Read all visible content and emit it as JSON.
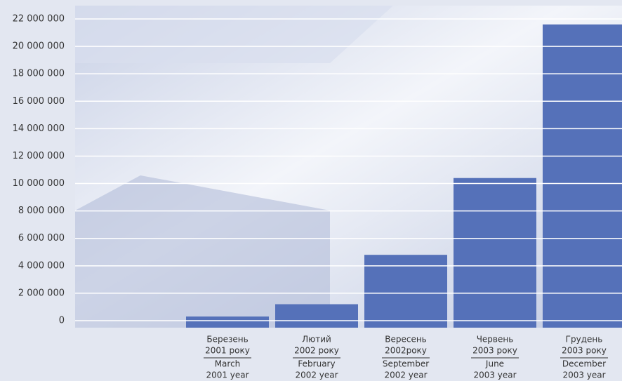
{
  "chart_data": {
    "type": "bar",
    "categories": [
      [
        "Березень",
        "2001 року",
        "March",
        "2001 year"
      ],
      [
        "Лютий",
        "2002 року",
        "February",
        "2002 year"
      ],
      [
        "Вересень",
        "2002року",
        "September",
        "2002 year"
      ],
      [
        "Червень",
        "2003 року",
        "June",
        "2003 year"
      ],
      [
        "Грудень",
        "2003 року",
        "December",
        "2003 year"
      ]
    ],
    "values": [
      300000,
      1200000,
      4800000,
      10400000,
      21600000
    ],
    "color": "#5571b9",
    "ylim": [
      0,
      22000000
    ],
    "yticks": [
      0,
      {
        "value": 2000000,
        "label": "2 000 000"
      },
      {
        "value": 4000000,
        "label": "4 000 000"
      },
      {
        "value": 6000000,
        "label": "6 000 000"
      },
      {
        "value": 8000000,
        "label": "8 000 000"
      },
      {
        "value": 10000000,
        "label": "10 000 000"
      },
      {
        "value": 12000000,
        "label": "12 000 000"
      },
      {
        "value": 14000000,
        "label": "14 000 000"
      },
      {
        "value": 16000000,
        "label": "16 000 000"
      },
      {
        "value": 18000000,
        "label": "18 000 000"
      },
      {
        "value": 20000000,
        "label": "20 000 000"
      },
      {
        "value": 22000000,
        "label": "22 000 000"
      }
    ],
    "grid": true
  }
}
